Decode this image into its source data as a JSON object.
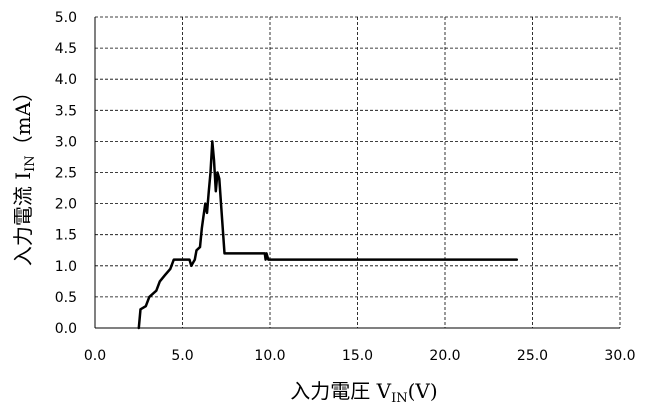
{
  "chart_data": {
    "type": "line",
    "title": "",
    "xlabel": {
      "prefix": "入力電圧 V",
      "subscript": "IN",
      "suffix": "(V)"
    },
    "ylabel": {
      "prefix": "入力電流 I",
      "subscript": "IN",
      "suffix": "（mA）"
    },
    "xlim": [
      0,
      30
    ],
    "ylim": [
      0,
      5
    ],
    "x_tick_labels": [
      "0.0",
      "5.0",
      "10.0",
      "15.0",
      "20.0",
      "25.0",
      "30.0"
    ],
    "y_tick_labels": [
      "0.0",
      "0.5",
      "1.0",
      "1.5",
      "2.0",
      "2.5",
      "3.0",
      "3.5",
      "4.0",
      "4.5",
      "5.0"
    ],
    "grid": true,
    "legend": "none",
    "series": [
      {
        "color": "#000000",
        "points": [
          [
            2.5,
            0.0
          ],
          [
            2.6,
            0.3
          ],
          [
            2.9,
            0.35
          ],
          [
            3.1,
            0.5
          ],
          [
            3.3,
            0.55
          ],
          [
            3.5,
            0.6
          ],
          [
            3.7,
            0.75
          ],
          [
            4.0,
            0.85
          ],
          [
            4.3,
            0.95
          ],
          [
            4.5,
            1.1
          ],
          [
            5.4,
            1.1
          ],
          [
            5.5,
            1.0
          ],
          [
            5.7,
            1.1
          ],
          [
            5.8,
            1.25
          ],
          [
            6.0,
            1.3
          ],
          [
            6.1,
            1.6
          ],
          [
            6.2,
            1.8
          ],
          [
            6.3,
            2.0
          ],
          [
            6.4,
            1.85
          ],
          [
            6.5,
            2.2
          ],
          [
            6.6,
            2.5
          ],
          [
            6.7,
            3.0
          ],
          [
            6.8,
            2.7
          ],
          [
            6.9,
            2.2
          ],
          [
            7.0,
            2.5
          ],
          [
            7.1,
            2.4
          ],
          [
            7.2,
            2.0
          ],
          [
            7.4,
            1.2
          ],
          [
            9.7,
            1.2
          ],
          [
            9.75,
            1.1
          ],
          [
            9.8,
            1.2
          ],
          [
            9.9,
            1.1
          ],
          [
            24.1,
            1.1
          ]
        ]
      }
    ]
  }
}
